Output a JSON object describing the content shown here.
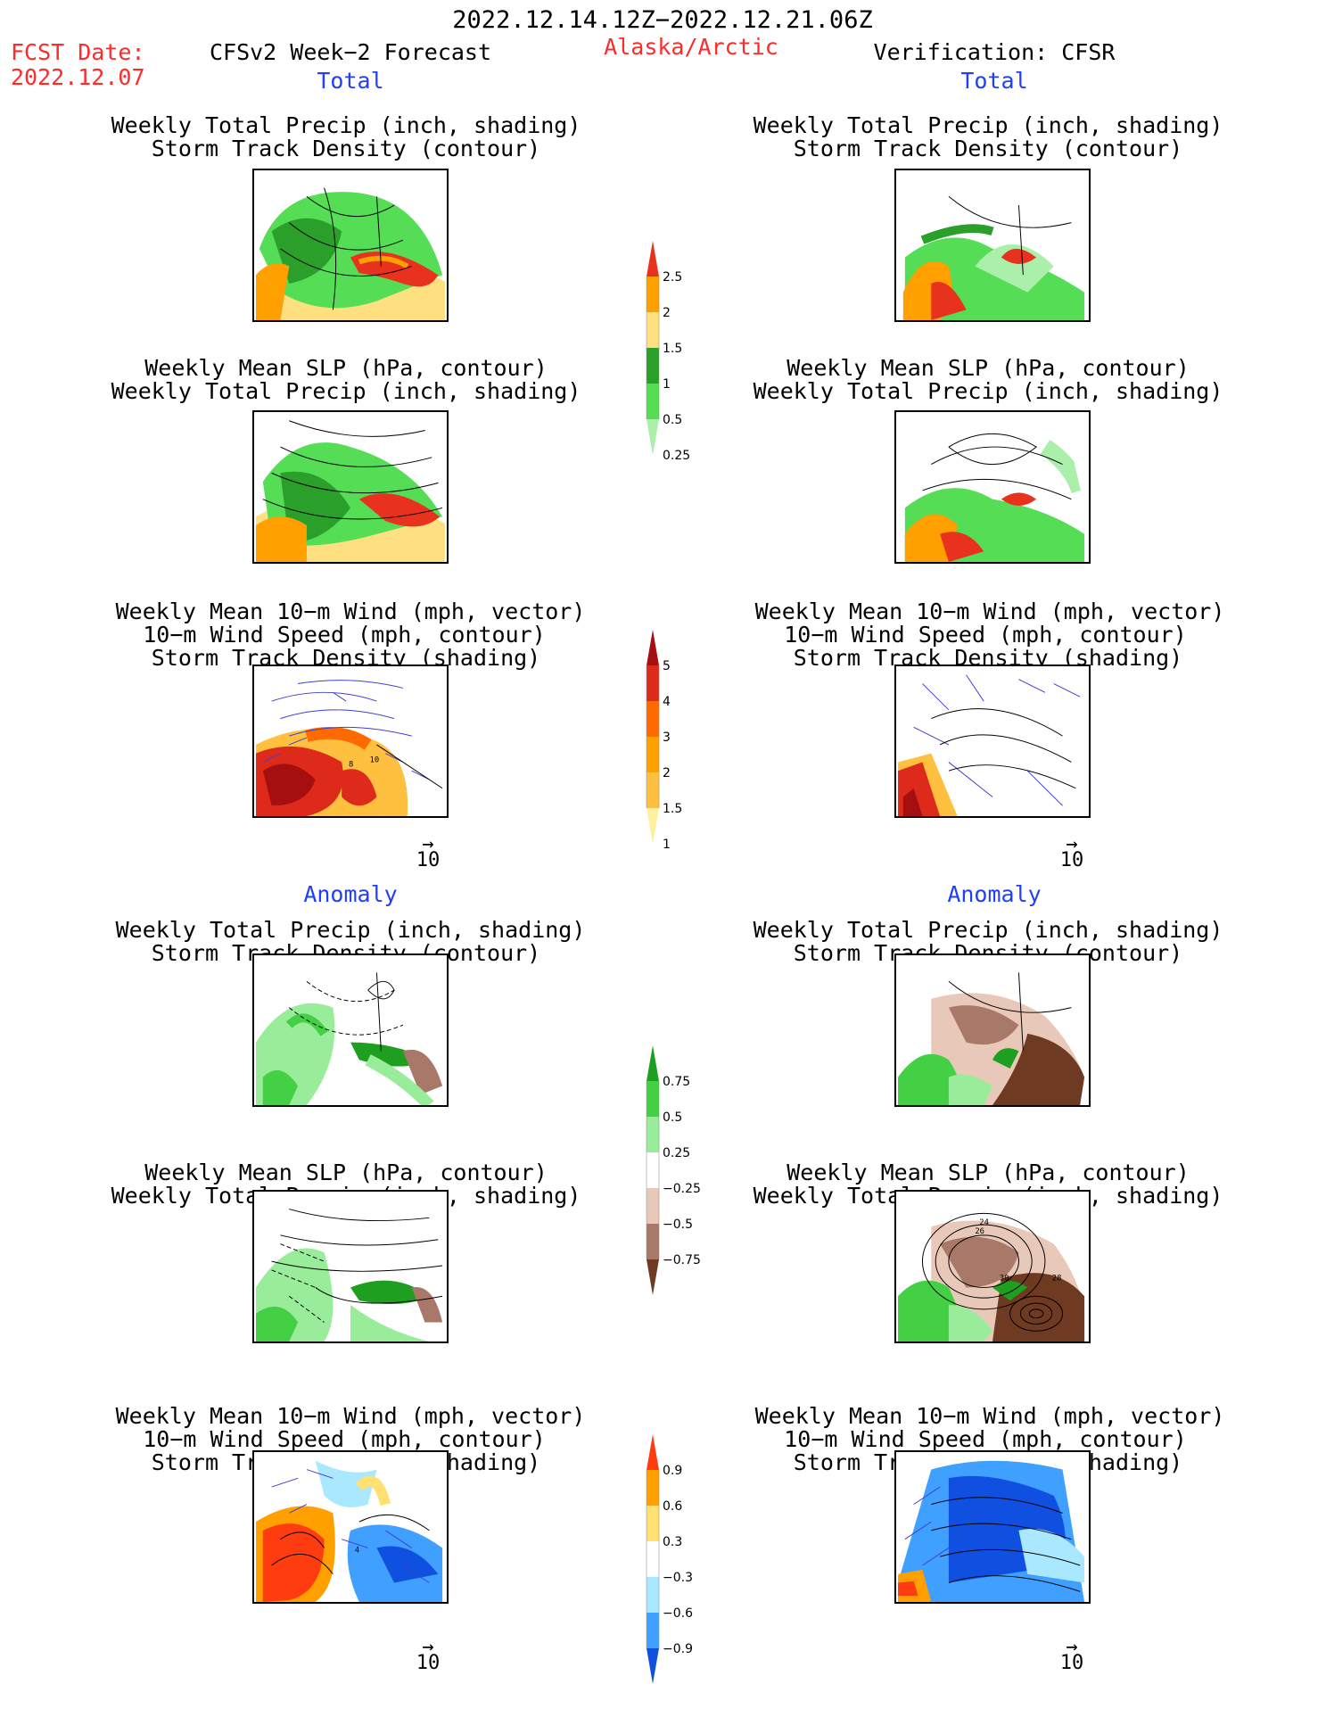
{
  "header": {
    "period": "2022.12.14.12Z−2022.12.21.06Z",
    "fcst_label": "FCST Date:",
    "fcst_date": "2022.12.07",
    "model": "CFSv2 Week−2 Forecast",
    "region": "Alaska/Arctic",
    "verification": "Verification: CFSR"
  },
  "sections": {
    "total": "Total",
    "anomaly": "Anomaly"
  },
  "titles": {
    "precip_storm": [
      "Weekly Total Precip (inch, shading)",
      "Storm Track Density (contour)"
    ],
    "slp_precip": [
      "Weekly Mean SLP (hPa, contour)",
      "Weekly Total Precip (inch, shading)"
    ],
    "wind_storm": [
      "Weekly Mean 10−m Wind (mph, vector)",
      "10−m Wind Speed (mph, contour)",
      "Storm Track Density (shading)"
    ]
  },
  "vector_ref": "10",
  "colorbars": {
    "total_precip": {
      "labels": [
        "2.5",
        "2",
        "1.5",
        "1",
        "0.5",
        "0.25"
      ],
      "colors": [
        "#e8321e",
        "#ff9f00",
        "#ffe080",
        "#2aa02a",
        "#55dd55",
        "#aaf0aa"
      ]
    },
    "total_storm": {
      "labels": [
        "5",
        "4",
        "3",
        "2",
        "1.5",
        "1"
      ],
      "colors": [
        "#a50f0f",
        "#dd2a1a",
        "#ff6a00",
        "#ff9f00",
        "#ffc040",
        "#fff0a0"
      ]
    },
    "anom_precip": {
      "labels": [
        "0.75",
        "0.5",
        "0.25",
        "−0.25",
        "−0.5",
        "−0.75"
      ],
      "colors": [
        "#1f9f1f",
        "#44d044",
        "#99ec99",
        "#ffffff",
        "#e8c8b8",
        "#a87868",
        "#6e3a22"
      ]
    },
    "anom_storm": {
      "labels": [
        "0.9",
        "0.6",
        "0.3",
        "−0.3",
        "−0.6",
        "−0.9"
      ],
      "colors": [
        "#ff3c10",
        "#ff9f00",
        "#ffe070",
        "#ffffff",
        "#aae8ff",
        "#3fa0ff",
        "#1050e0"
      ]
    },
    "palette_name": "precip-storm-anomaly"
  },
  "map_labels": {
    "wind_total_left": [
      "8",
      "10"
    ],
    "slp_anom_right": [
      "24",
      "26",
      "30",
      "28"
    ],
    "wind_anom_left": [
      "4"
    ]
  }
}
